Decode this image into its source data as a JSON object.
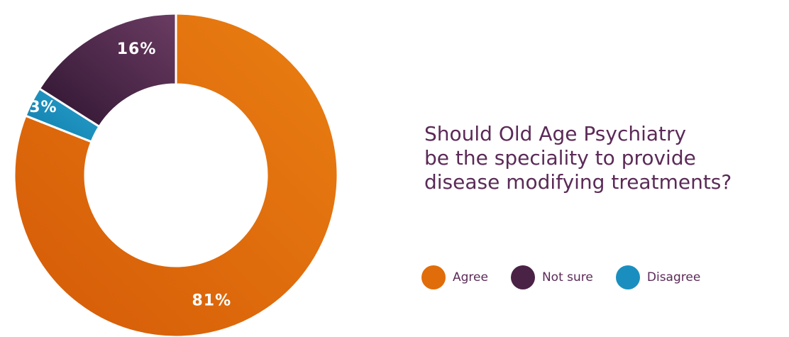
{
  "chart_data": {
    "type": "pie",
    "donut": true,
    "title_lines": [
      "Should Old Age Psychiatry",
      "be the speciality to provide",
      "disease modifying treatments?"
    ],
    "legend_position": "bottom-right",
    "series": [
      {
        "name": "Agree",
        "value": 81,
        "label": "81%",
        "color": "#e06d0a",
        "color_light": "#ea7f12",
        "color_dark": "#d45a07"
      },
      {
        "name": "Disagree",
        "value": 3,
        "label": "3%",
        "color": "#1a8fbf",
        "color_light": "#2aa0cf",
        "color_dark": "#0f7eaa"
      },
      {
        "name": "Not sure",
        "value": 16,
        "label": "16%",
        "color": "#4a2245",
        "color_light": "#6b3c63",
        "color_dark": "#2e1430"
      }
    ],
    "legend": [
      {
        "name": "Agree",
        "color": "#e06d0a"
      },
      {
        "name": "Not sure",
        "color": "#4a2245"
      },
      {
        "name": "Disagree",
        "color": "#1a8fbf"
      }
    ]
  }
}
